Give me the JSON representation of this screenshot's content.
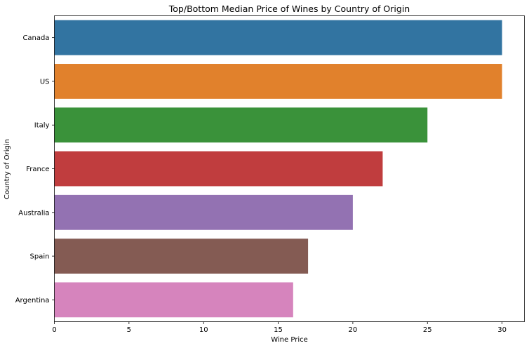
{
  "chart_data": {
    "type": "bar",
    "orientation": "horizontal",
    "title": "Top/Bottom Median Price of Wines by Country of Origin",
    "xlabel": "Wine Price",
    "ylabel": "Country of Origin",
    "xlim": [
      0,
      31.5
    ],
    "xticks": [
      0,
      5,
      10,
      15,
      20,
      25,
      30
    ],
    "grid": false,
    "categories": [
      "Canada",
      "US",
      "Italy",
      "France",
      "Australia",
      "Spain",
      "Argentina"
    ],
    "values": [
      30,
      30,
      25,
      22,
      20,
      17,
      16
    ],
    "colors": [
      "#3274a1",
      "#e1812c",
      "#3a923a",
      "#c03d3e",
      "#9372b2",
      "#845b53",
      "#d684bd"
    ]
  }
}
